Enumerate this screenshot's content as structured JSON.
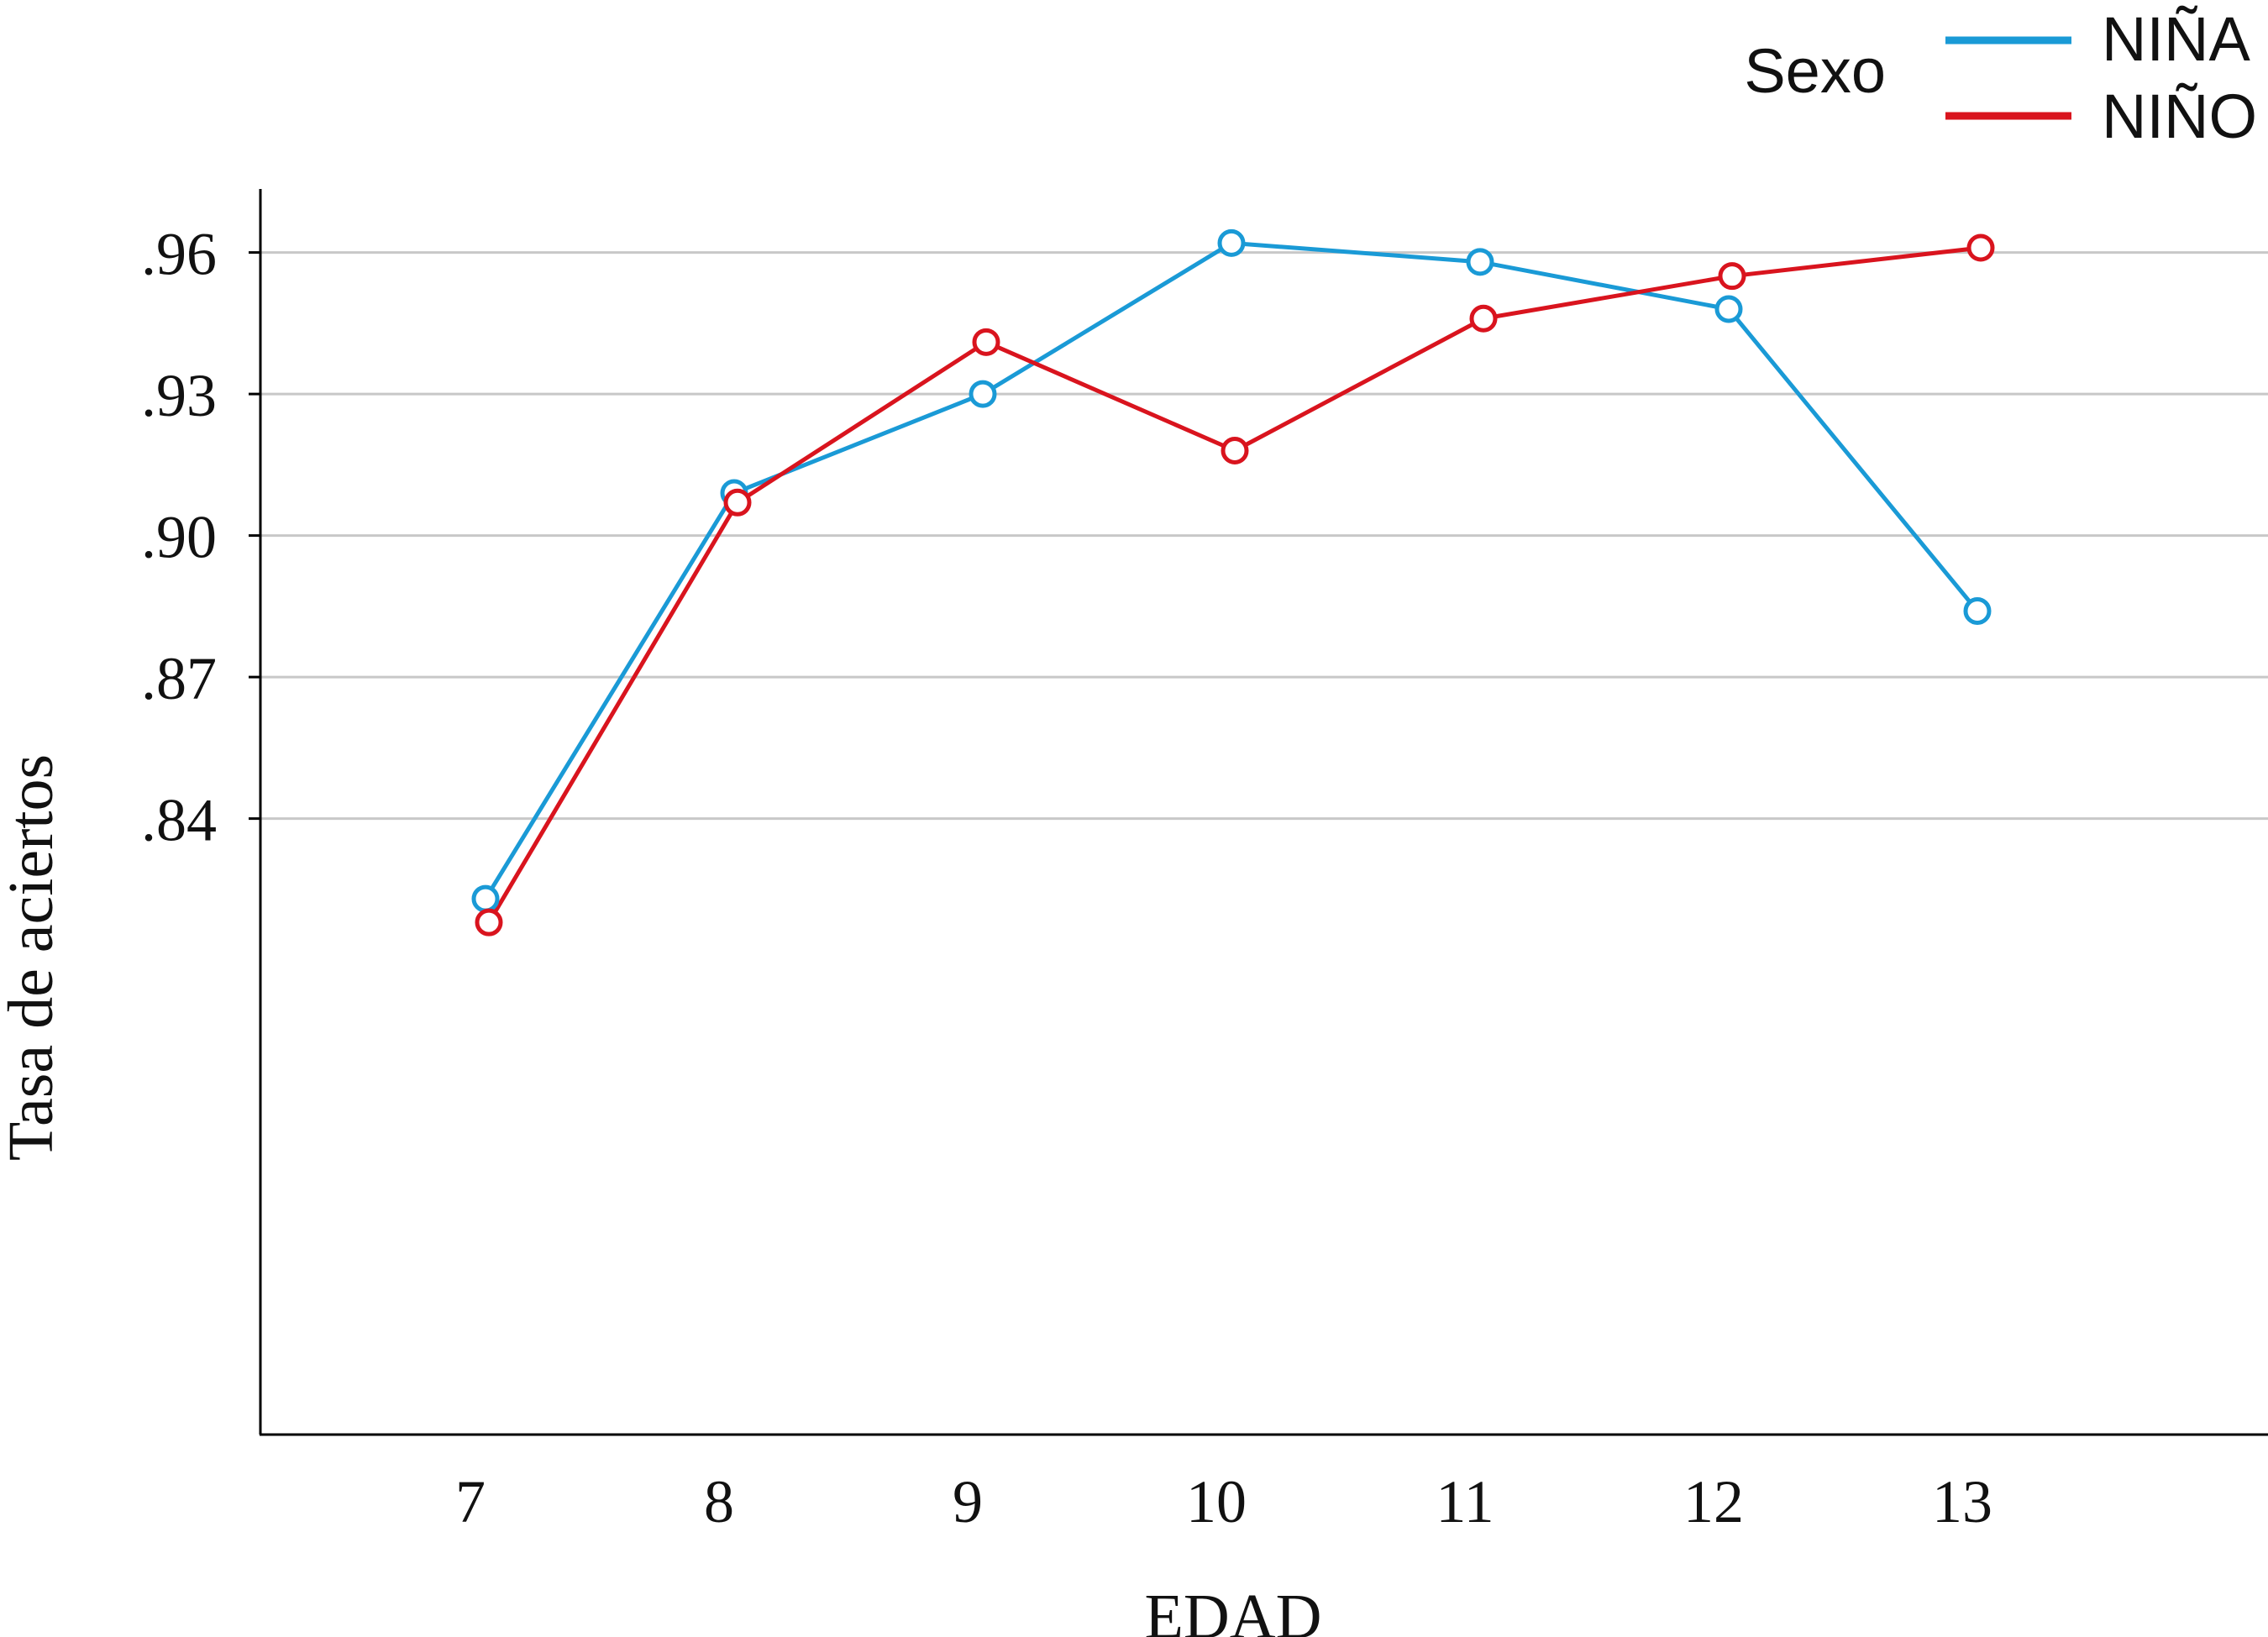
{
  "chart_data": {
    "type": "line",
    "xlabel": "EDAD",
    "ylabel": "Tasa de aciertos",
    "categories": [
      "7",
      "8",
      "9",
      "10",
      "11",
      "12",
      "13"
    ],
    "x": [
      7,
      8,
      9,
      10,
      11,
      12,
      13
    ],
    "ylim": [
      0.81,
      0.97
    ],
    "yticks": [
      0.84,
      0.87,
      0.9,
      0.93,
      0.96
    ],
    "ytick_labels": [
      ".84",
      ".87",
      ".90",
      ".93",
      ".96"
    ],
    "grid": "horizontal",
    "legend": {
      "title": "Sexo",
      "position": "top-right",
      "entries": [
        "NIÑA",
        "NIÑO"
      ]
    },
    "series": [
      {
        "name": "NIÑA",
        "color": "#1a9ad6",
        "values": [
          0.823,
          0.909,
          0.93,
          0.962,
          0.958,
          0.948,
          0.884
        ]
      },
      {
        "name": "NIÑO",
        "color": "#d9141e",
        "values": [
          0.818,
          0.907,
          0.941,
          0.918,
          0.946,
          0.955,
          0.961
        ]
      }
    ]
  }
}
